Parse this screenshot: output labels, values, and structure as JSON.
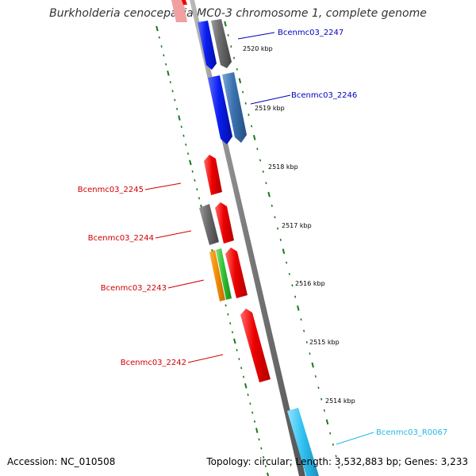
{
  "title": "Burkholderia cenocepacia MC0-3 chromosome 1, complete genome",
  "footer": {
    "accession": "Accession: NC_010508",
    "summary": "Topology: circular; Length: 3,532,883 bp; Genes: 3,233"
  },
  "colors": {
    "backbone": "#888888",
    "ruler_ticks": "#1a7a1a",
    "forward_gene_label": "#0000c0",
    "reverse_gene_label": "#d00000",
    "rna_gene_label": "#20b8e8",
    "red_gene": "#ee0000",
    "blue_gene": "#0a1ef0",
    "steelblue_gene": "#3a72b0",
    "gray_gene": "#6a6a6a",
    "orange_gene": "#f08a00",
    "green_gene": "#30c030",
    "skyblue_gene": "#30c0f0",
    "pink_gene": "#f0a0a0"
  },
  "ruler": {
    "labels": [
      "2520 kbp",
      "2519 kbp",
      "2518 kbp",
      "2517 kbp",
      "2516 kbp",
      "2515 kbp",
      "2514 kbp"
    ]
  },
  "genes": [
    {
      "name": "Bcenmc03_2247",
      "strand": "forward",
      "label_color": "forward_gene_label"
    },
    {
      "name": "Bcenmc03_2246",
      "strand": "forward",
      "label_color": "forward_gene_label"
    },
    {
      "name": "Bcenmc03_2245",
      "strand": "reverse",
      "label_color": "reverse_gene_label"
    },
    {
      "name": "Bcenmc03_2244",
      "strand": "reverse",
      "label_color": "reverse_gene_label"
    },
    {
      "name": "Bcenmc03_2243",
      "strand": "reverse",
      "label_color": "reverse_gene_label"
    },
    {
      "name": "Bcenmc03_2242",
      "strand": "reverse",
      "label_color": "reverse_gene_label"
    },
    {
      "name": "Bcenmc03_R0067",
      "strand": "forward",
      "label_color": "rna_gene_label"
    }
  ]
}
